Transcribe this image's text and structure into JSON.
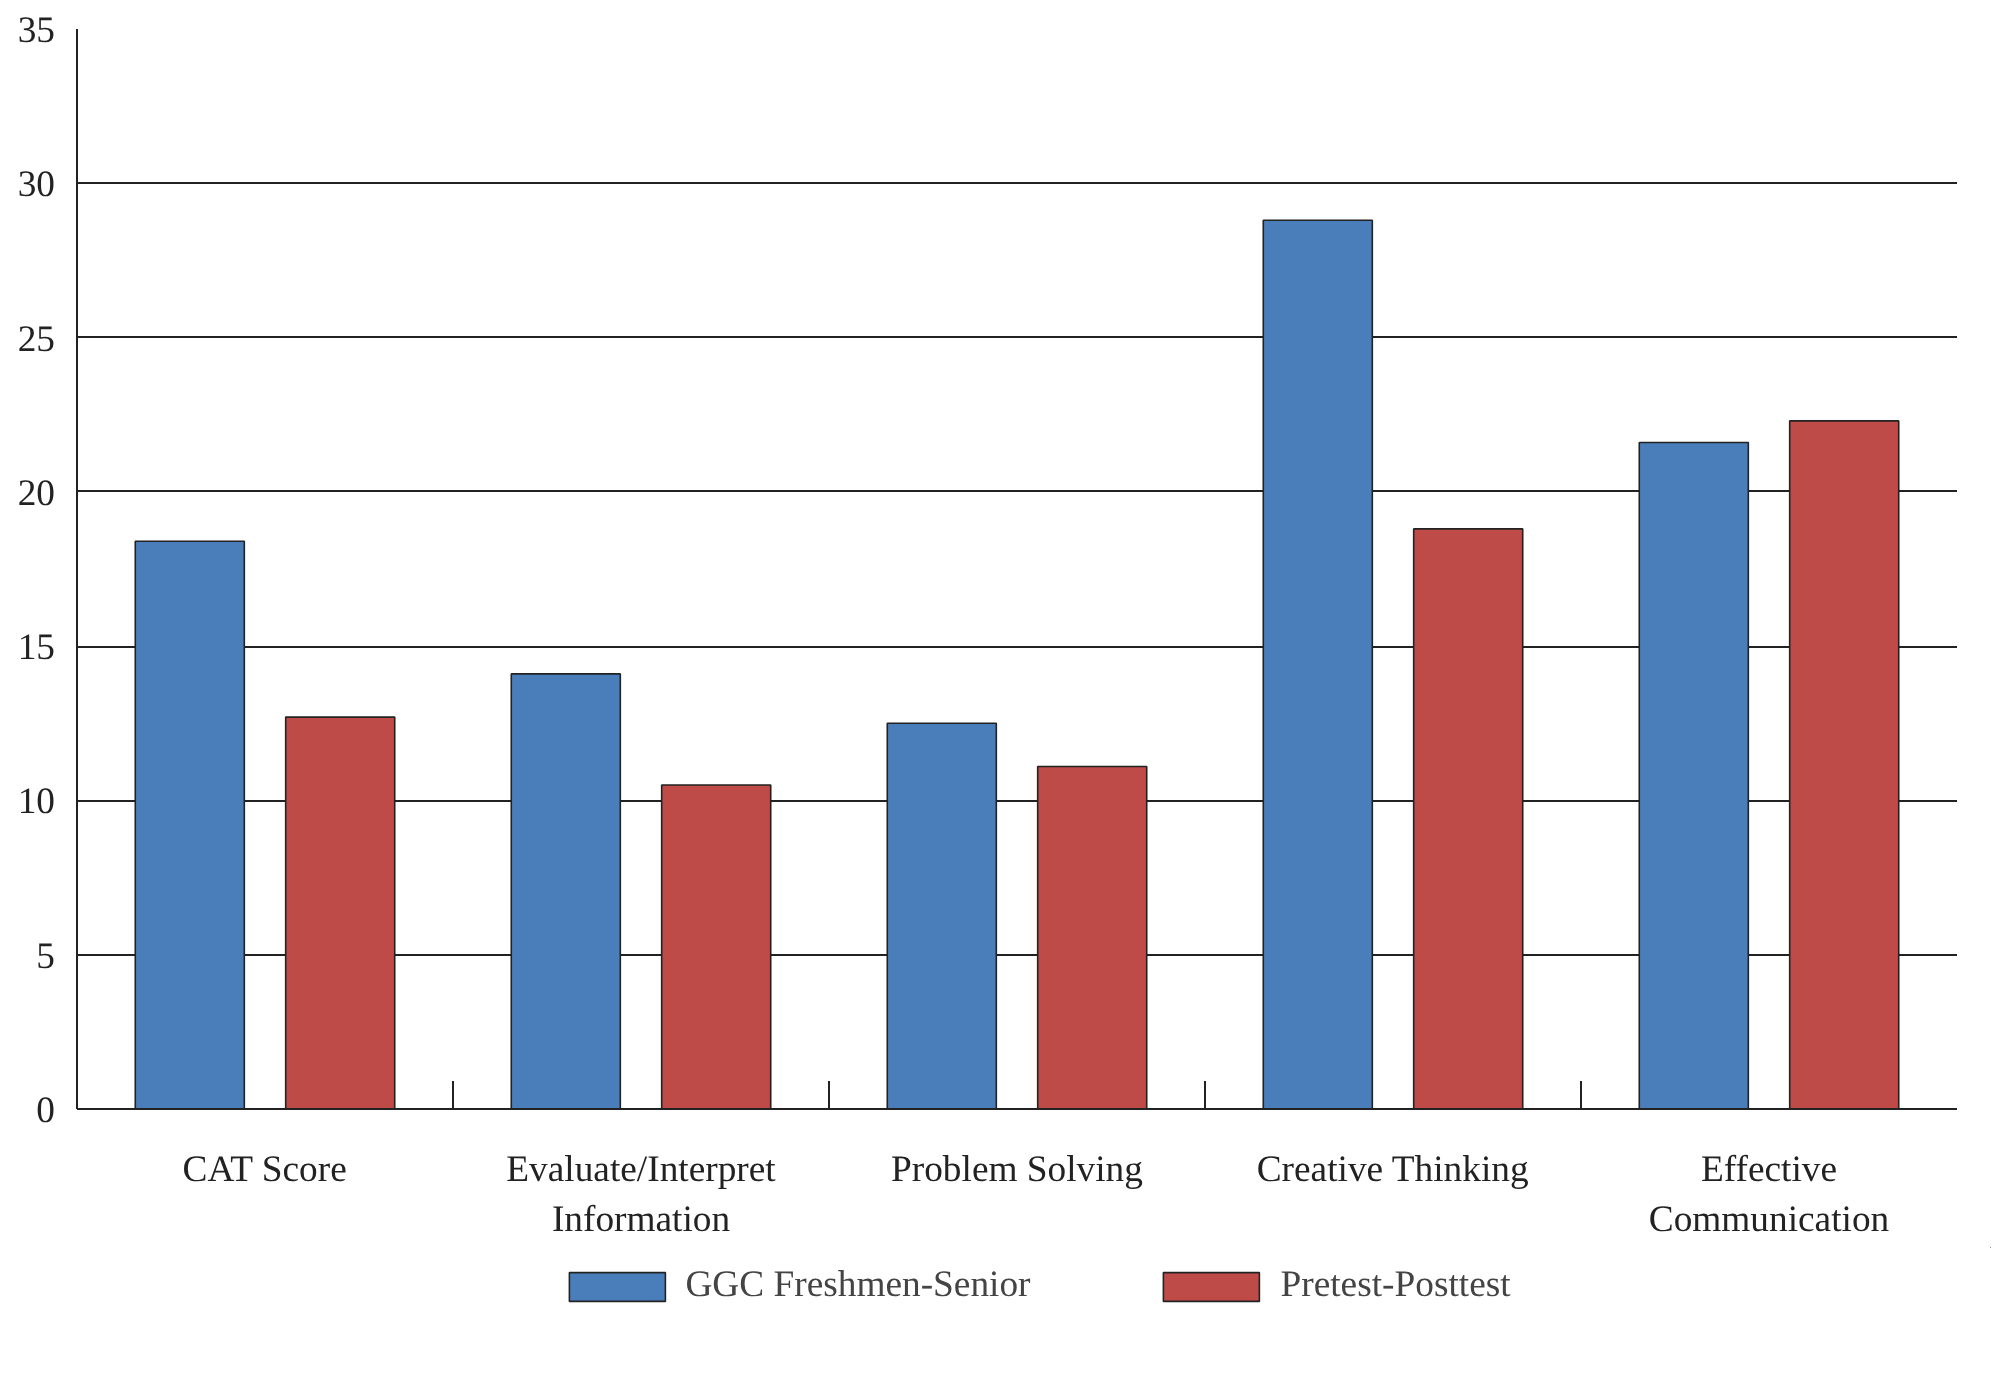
{
  "chart_data": {
    "type": "bar",
    "categories": [
      "CAT Score",
      "Evaluate/Interpret Information",
      "Problem Solving",
      "Creative Thinking",
      "Effective Communication"
    ],
    "series": [
      {
        "name": "GGC Freshmen-Senior",
        "color": "#4a7ebb",
        "values": [
          18.4,
          14.1,
          12.5,
          28.8,
          21.6
        ]
      },
      {
        "name": "Pretest-Posttest",
        "color": "#be4b48",
        "values": [
          12.7,
          10.5,
          11.1,
          18.8,
          22.3
        ]
      }
    ],
    "ylim": [
      0,
      35
    ],
    "yticks": [
      0,
      5,
      10,
      15,
      20,
      25,
      30,
      35
    ],
    "grid": "y",
    "legend": "bottom"
  }
}
